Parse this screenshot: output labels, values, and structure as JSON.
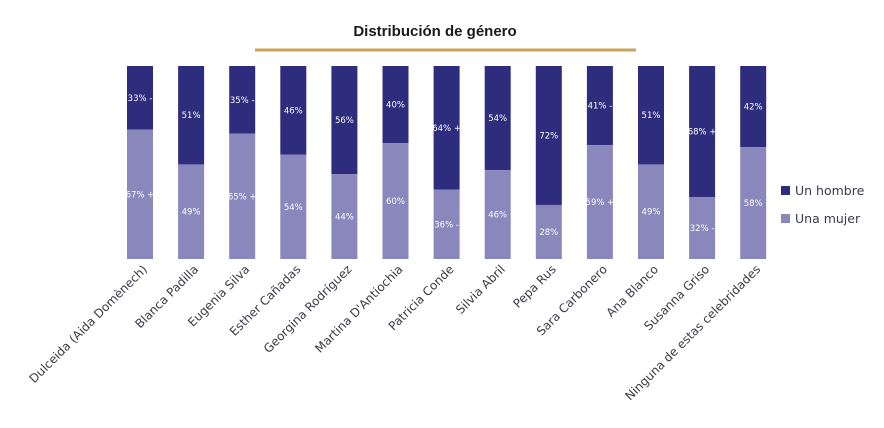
{
  "chart_data": {
    "type": "bar",
    "stacked": true,
    "percent": true,
    "title": "Distribución de género",
    "categories": [
      "Dulceida (Aida Domènech)",
      "Blanca Padilla",
      "Eugenia Silva",
      "Esther Cañadas",
      "Georgina Rodríguez",
      "Martina D'Antiochia",
      "Patricia Conde",
      "Silvia Abril",
      "Pepa Rus",
      "Sara Carbonero",
      "Ana Blanco",
      "Susanna Griso",
      "Ninguna de estas celebridades"
    ],
    "series": [
      {
        "name": "Un hombre",
        "color": "#2e2c7c",
        "values": [
          33,
          51,
          35,
          46,
          56,
          40,
          64,
          54,
          72,
          41,
          51,
          68,
          42
        ],
        "labels": [
          "33% -",
          "51%",
          "35% -",
          "46%",
          "56%",
          "40%",
          "64% +",
          "54%",
          "72%",
          "41% -",
          "51%",
          "68% +",
          "42%"
        ]
      },
      {
        "name": "Una mujer",
        "color": "#8a87bd",
        "values": [
          67,
          49,
          65,
          54,
          44,
          60,
          36,
          46,
          28,
          59,
          49,
          32,
          58
        ],
        "labels": [
          "67% +",
          "49%",
          "65% +",
          "54%",
          "44%",
          "60%",
          "36% -",
          "46%",
          "28%",
          "59% +",
          "49%",
          "32% -",
          "58%"
        ]
      }
    ],
    "ylim": [
      0,
      100
    ],
    "legend_position": "right",
    "title_rule_color": "#c9a45c",
    "grid": false
  }
}
